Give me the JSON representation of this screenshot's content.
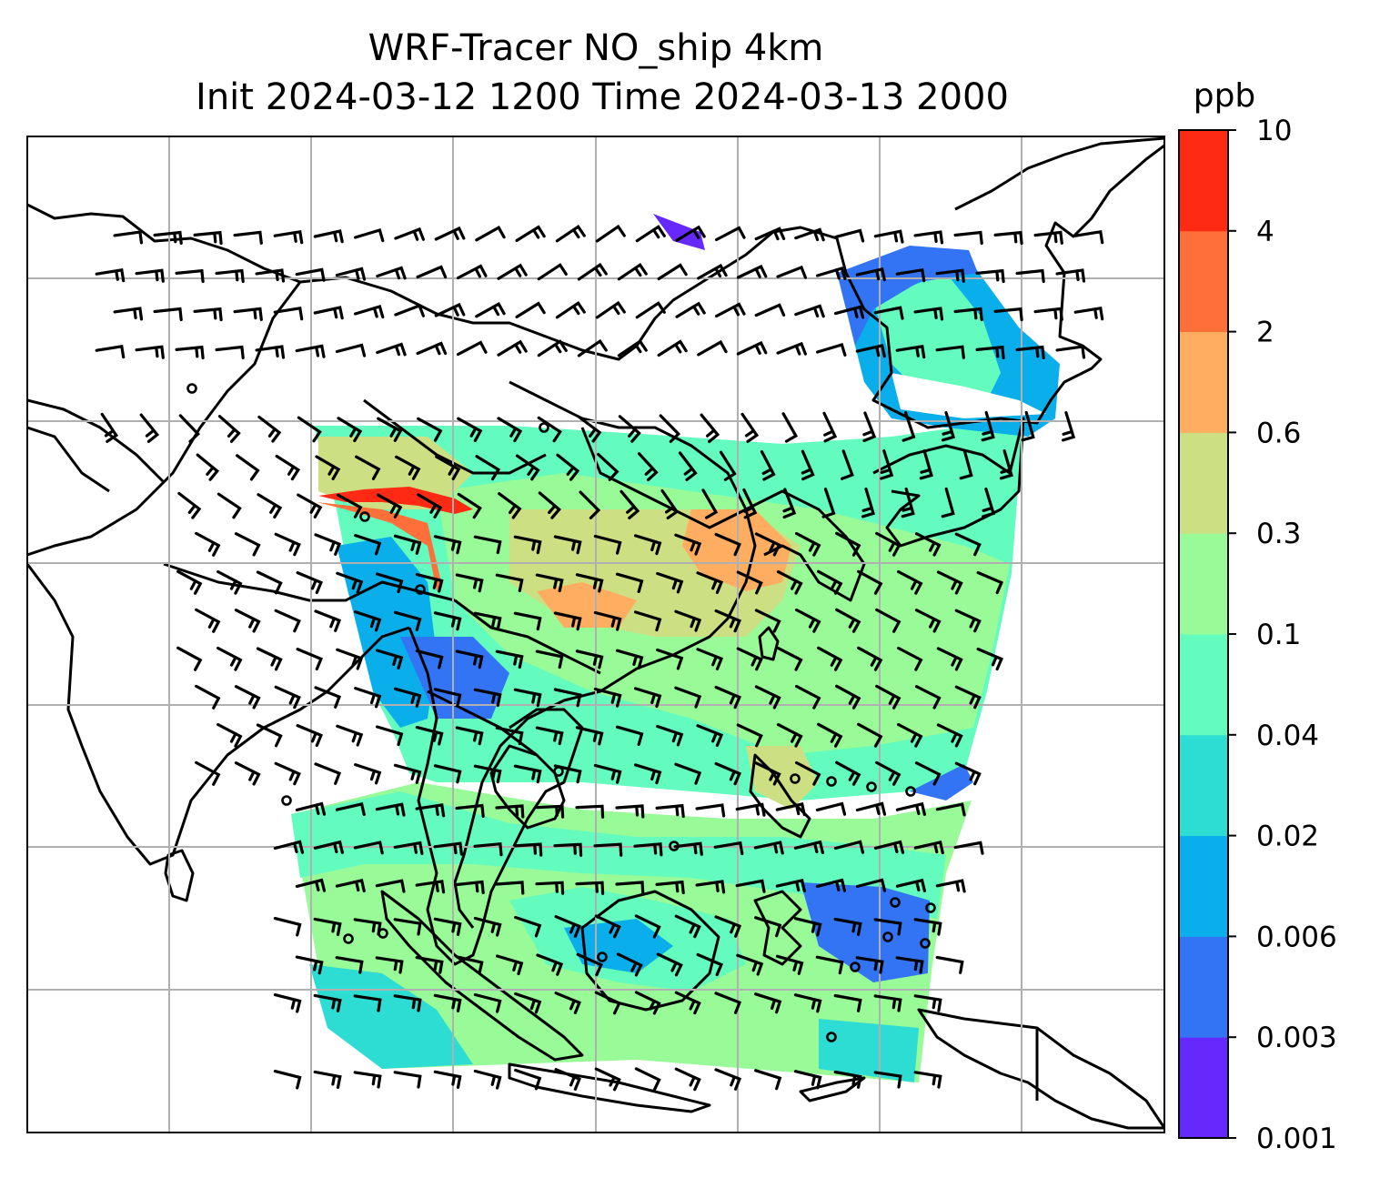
{
  "title": {
    "line1": "WRF-Tracer NO_ship 4km",
    "line2": "Init 2024-03-12 1200 Time 2024-03-13 2000"
  },
  "colorbar": {
    "unit": "ppb",
    "levels": [
      "0.001",
      "0.003",
      "0.006",
      "0.02",
      "0.04",
      "0.1",
      "0.3",
      "0.6",
      "2",
      "4",
      "10"
    ],
    "colors": [
      "#6629fb",
      "#3274f4",
      "#0aaeea",
      "#2ddcd2",
      "#63fbbe",
      "#98fb98",
      "#cce083",
      "#fead61",
      "#fe6f3a",
      "#ff2a14"
    ]
  },
  "map": {
    "land_outline_color": "#000000",
    "gridline_color": "#b0b0b0",
    "barb_color": "#000000"
  }
}
